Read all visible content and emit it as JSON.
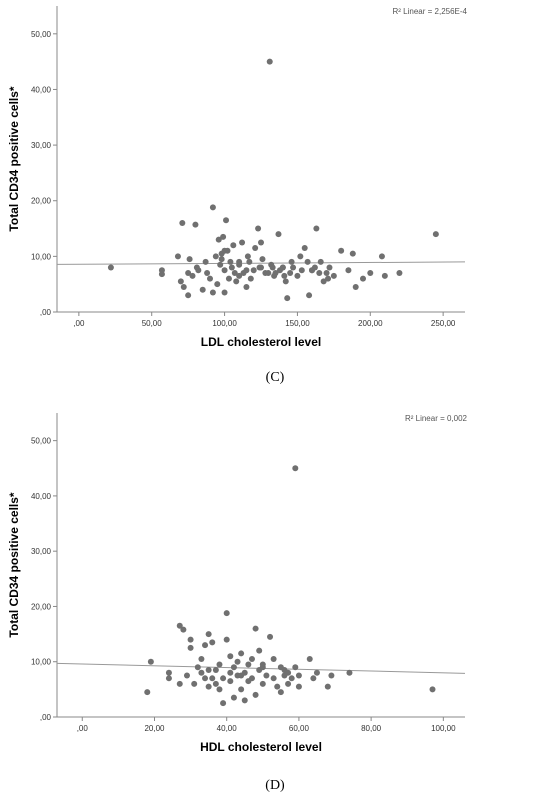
{
  "chart_data": [
    {
      "type": "scatter",
      "panel_label": "(C)",
      "xlabel": "LDL cholesterol level",
      "ylabel": "Total CD34 positive cells*",
      "annotation": "R² Linear = 2,256E-4",
      "xlim": [
        -15,
        265
      ],
      "ylim": [
        0,
        55
      ],
      "xticks": [
        0,
        50,
        100,
        150,
        200,
        250
      ],
      "xtick_labels": [
        ",00",
        "50,00",
        "100,00",
        "150,00",
        "200,00",
        "250,00"
      ],
      "yticks": [
        0,
        10,
        20,
        30,
        40,
        50
      ],
      "ytick_labels": [
        ",00",
        "10,00",
        "20,00",
        "30,00",
        "40,00",
        "50,00"
      ],
      "grid": false,
      "fit_line": {
        "x": [
          -15,
          265
        ],
        "y": [
          8.55,
          9.0
        ]
      },
      "series": [
        {
          "x": [
            22,
            57,
            57,
            68,
            70,
            71,
            72,
            75,
            75,
            76,
            78,
            80,
            81,
            82,
            85,
            87,
            88,
            90,
            92,
            92,
            94,
            95,
            96,
            97,
            98,
            99,
            100,
            100,
            101,
            102,
            103,
            104,
            105,
            106,
            107,
            108,
            110,
            110,
            112,
            113,
            115,
            115,
            116,
            117,
            118,
            120,
            121,
            123,
            124,
            125,
            126,
            128,
            130,
            131,
            132,
            133,
            134,
            135,
            137,
            138,
            140,
            141,
            142,
            143,
            145,
            146,
            147,
            150,
            152,
            153,
            155,
            157,
            158,
            160,
            162,
            163,
            165,
            166,
            168,
            170,
            171,
            172,
            175,
            180,
            185,
            188,
            190,
            195,
            200,
            208,
            210,
            220,
            245,
            98,
            100,
            110,
            125,
            140,
            160
          ],
          "y": [
            8,
            7.5,
            6.8,
            10,
            5.5,
            16,
            4.5,
            3,
            7,
            9.5,
            6.5,
            15.7,
            8,
            7.5,
            4,
            9,
            7,
            6,
            3.5,
            18.8,
            10,
            5,
            13,
            8.5,
            9.5,
            13.5,
            7.5,
            3.5,
            16.5,
            11,
            6,
            9,
            8,
            12,
            7,
            5.5,
            8.5,
            6.5,
            12.5,
            7,
            7.5,
            4.5,
            10,
            9,
            6,
            7.5,
            11.5,
            15,
            8,
            12.5,
            9.5,
            7,
            7,
            45,
            8.5,
            8,
            6.5,
            7,
            14,
            7.5,
            8,
            6.5,
            5.5,
            2.5,
            7,
            9,
            8,
            6.5,
            10,
            7.5,
            11.5,
            9,
            3,
            7.5,
            8,
            15,
            7,
            9,
            5.5,
            7,
            6,
            8,
            6.5,
            11,
            7.5,
            10.5,
            4.5,
            6,
            7,
            10,
            6.5,
            7,
            14,
            10.5,
            11,
            9,
            8,
            8,
            7.5
          ]
        }
      ]
    },
    {
      "type": "scatter",
      "panel_label": "(D)",
      "xlabel": "HDL cholesterol level",
      "ylabel": "Total CD34 positive cells*",
      "annotation": "R² Linear = 0,002",
      "xlim": [
        -7,
        106
      ],
      "ylim": [
        0,
        55
      ],
      "xticks": [
        0,
        20,
        40,
        60,
        80,
        100
      ],
      "xtick_labels": [
        ",00",
        "20,00",
        "40,00",
        "60,00",
        "80,00",
        "100,00"
      ],
      "yticks": [
        0,
        10,
        20,
        30,
        40,
        50
      ],
      "ytick_labels": [
        ",00",
        "10,00",
        "20,00",
        "30,00",
        "40,00",
        "50,00"
      ],
      "grid": false,
      "fit_line": {
        "x": [
          -7,
          106
        ],
        "y": [
          9.7,
          7.9
        ]
      },
      "series": [
        {
          "x": [
            18,
            19,
            24,
            24,
            27,
            27,
            28,
            29,
            30,
            30,
            31,
            32,
            33,
            33,
            34,
            34,
            35,
            35,
            36,
            36,
            37,
            37,
            38,
            38,
            39,
            39,
            40,
            40,
            41,
            41,
            41,
            42,
            42,
            43,
            43,
            44,
            44,
            45,
            45,
            46,
            46,
            47,
            47,
            48,
            48,
            49,
            49,
            50,
            50,
            51,
            52,
            53,
            53,
            54,
            55,
            55,
            56,
            56,
            57,
            58,
            59,
            59,
            60,
            60,
            63,
            64,
            65,
            68,
            69,
            74,
            97,
            35,
            44,
            50,
            57
          ],
          "y": [
            4.5,
            10,
            8,
            7,
            16.5,
            6,
            15.8,
            7.5,
            14,
            12.5,
            6,
            9,
            8,
            10.5,
            13,
            7,
            15,
            5.5,
            13.5,
            7,
            6,
            8.5,
            9.5,
            5,
            7,
            2.5,
            18.8,
            14,
            11,
            8,
            6.5,
            9,
            3.5,
            10,
            7.5,
            5,
            11.5,
            8,
            3,
            9.5,
            6.5,
            10.5,
            7,
            16,
            4,
            12,
            8.5,
            9,
            6,
            7.5,
            14.5,
            10.5,
            7,
            5.5,
            9,
            4.5,
            7.5,
            8.5,
            6,
            7,
            45,
            9,
            7.5,
            5.5,
            10.5,
            7,
            8,
            5.5,
            7.5,
            8,
            5,
            8.5,
            7.5,
            9.5,
            8
          ]
        }
      ]
    }
  ]
}
